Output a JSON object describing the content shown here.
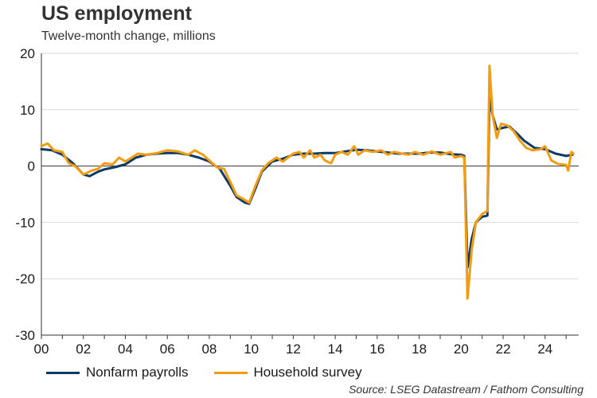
{
  "header": {
    "title": "US employment",
    "subtitle": "Twelve-month change, millions"
  },
  "legend": {
    "items": [
      {
        "label": "Nonfarm payrolls",
        "color": "#0d3b66"
      },
      {
        "label": "Household survey",
        "color": "#f39c12"
      }
    ]
  },
  "source": "Source: LSEG Datastream / Fathom Consulting",
  "chart_data": {
    "type": "line",
    "title": "US employment",
    "subtitle": "Twelve-month change, millions",
    "xlabel": "",
    "ylabel": "",
    "xlim": [
      2000,
      2025.6
    ],
    "ylim": [
      -30,
      20
    ],
    "x_ticks": [
      2000,
      2002,
      2004,
      2006,
      2008,
      2010,
      2012,
      2014,
      2016,
      2018,
      2020,
      2022,
      2024
    ],
    "x_tick_labels": [
      "00",
      "02",
      "04",
      "06",
      "08",
      "10",
      "12",
      "14",
      "16",
      "18",
      "20",
      "22",
      "24"
    ],
    "y_ticks": [
      -30,
      -20,
      -10,
      0,
      10,
      20
    ],
    "y_tick_labels": [
      "-30",
      "-20",
      "-10",
      "0",
      "10",
      "20"
    ],
    "grid": "horizontal",
    "legend_position": "bottom",
    "series": [
      {
        "name": "Nonfarm payrolls",
        "color": "#0d3b66",
        "points": [
          [
            2000.0,
            3.0
          ],
          [
            2000.5,
            2.8
          ],
          [
            2001.0,
            2.0
          ],
          [
            2001.5,
            0.5
          ],
          [
            2002.0,
            -1.5
          ],
          [
            2002.3,
            -1.8
          ],
          [
            2002.7,
            -1.0
          ],
          [
            2003.0,
            -0.6
          ],
          [
            2003.5,
            -0.2
          ],
          [
            2004.0,
            0.3
          ],
          [
            2004.5,
            1.5
          ],
          [
            2005.0,
            2.0
          ],
          [
            2005.5,
            2.2
          ],
          [
            2006.0,
            2.3
          ],
          [
            2006.5,
            2.3
          ],
          [
            2007.0,
            2.0
          ],
          [
            2007.5,
            1.5
          ],
          [
            2008.0,
            0.8
          ],
          [
            2008.5,
            -0.5
          ],
          [
            2009.0,
            -3.5
          ],
          [
            2009.3,
            -5.5
          ],
          [
            2009.7,
            -6.5
          ],
          [
            2009.9,
            -6.7
          ],
          [
            2010.2,
            -4.0
          ],
          [
            2010.5,
            -1.0
          ],
          [
            2011.0,
            0.8
          ],
          [
            2011.5,
            1.3
          ],
          [
            2012.0,
            2.0
          ],
          [
            2012.5,
            2.2
          ],
          [
            2013.0,
            2.2
          ],
          [
            2013.5,
            2.3
          ],
          [
            2014.0,
            2.3
          ],
          [
            2014.5,
            2.6
          ],
          [
            2015.0,
            2.9
          ],
          [
            2015.5,
            2.8
          ],
          [
            2016.0,
            2.6
          ],
          [
            2016.5,
            2.4
          ],
          [
            2017.0,
            2.2
          ],
          [
            2017.5,
            2.2
          ],
          [
            2018.0,
            2.2
          ],
          [
            2018.5,
            2.4
          ],
          [
            2019.0,
            2.4
          ],
          [
            2019.5,
            2.1
          ],
          [
            2020.0,
            2.0
          ],
          [
            2020.15,
            1.8
          ],
          [
            2020.3,
            -18.0
          ],
          [
            2020.5,
            -13.0
          ],
          [
            2020.7,
            -10.0
          ],
          [
            2021.0,
            -9.0
          ],
          [
            2021.25,
            -8.8
          ],
          [
            2021.35,
            12.0
          ],
          [
            2021.5,
            9.0
          ],
          [
            2021.7,
            6.5
          ],
          [
            2022.0,
            6.8
          ],
          [
            2022.3,
            7.0
          ],
          [
            2022.6,
            6.0
          ],
          [
            2023.0,
            4.5
          ],
          [
            2023.5,
            3.2
          ],
          [
            2024.0,
            3.0
          ],
          [
            2024.5,
            2.2
          ],
          [
            2025.0,
            1.8
          ],
          [
            2025.3,
            2.0
          ]
        ]
      },
      {
        "name": "Household survey",
        "color": "#f39c12",
        "points": [
          [
            2000.0,
            3.5
          ],
          [
            2000.3,
            4.0
          ],
          [
            2000.6,
            2.8
          ],
          [
            2001.0,
            2.5
          ],
          [
            2001.3,
            0.5
          ],
          [
            2001.6,
            0.0
          ],
          [
            2002.0,
            -1.5
          ],
          [
            2002.4,
            -0.8
          ],
          [
            2002.7,
            -0.5
          ],
          [
            2003.0,
            0.5
          ],
          [
            2003.4,
            0.3
          ],
          [
            2003.7,
            1.5
          ],
          [
            2004.0,
            0.8
          ],
          [
            2004.3,
            1.5
          ],
          [
            2004.6,
            2.2
          ],
          [
            2005.0,
            2.0
          ],
          [
            2005.5,
            2.3
          ],
          [
            2006.0,
            2.8
          ],
          [
            2006.5,
            2.6
          ],
          [
            2007.0,
            2.0
          ],
          [
            2007.3,
            2.8
          ],
          [
            2007.7,
            2.0
          ],
          [
            2008.0,
            1.0
          ],
          [
            2008.4,
            -0.3
          ],
          [
            2008.7,
            -0.5
          ],
          [
            2009.0,
            -2.8
          ],
          [
            2009.3,
            -5.2
          ],
          [
            2009.6,
            -5.8
          ],
          [
            2009.9,
            -6.5
          ],
          [
            2010.2,
            -3.5
          ],
          [
            2010.5,
            -0.8
          ],
          [
            2010.8,
            0.5
          ],
          [
            2011.2,
            1.5
          ],
          [
            2011.5,
            0.8
          ],
          [
            2012.0,
            2.2
          ],
          [
            2012.3,
            2.5
          ],
          [
            2012.5,
            1.5
          ],
          [
            2012.8,
            2.8
          ],
          [
            2013.0,
            1.5
          ],
          [
            2013.3,
            2.0
          ],
          [
            2013.5,
            1.0
          ],
          [
            2013.8,
            0.5
          ],
          [
            2014.0,
            2.0
          ],
          [
            2014.3,
            2.5
          ],
          [
            2014.6,
            2.0
          ],
          [
            2014.9,
            3.5
          ],
          [
            2015.1,
            2.0
          ],
          [
            2015.4,
            2.8
          ],
          [
            2015.8,
            2.5
          ],
          [
            2016.2,
            2.8
          ],
          [
            2016.5,
            2.0
          ],
          [
            2016.8,
            2.5
          ],
          [
            2017.2,
            2.2
          ],
          [
            2017.5,
            2.0
          ],
          [
            2017.8,
            2.5
          ],
          [
            2018.2,
            2.0
          ],
          [
            2018.6,
            2.6
          ],
          [
            2019.0,
            2.0
          ],
          [
            2019.5,
            2.5
          ],
          [
            2019.7,
            1.5
          ],
          [
            2020.0,
            1.8
          ],
          [
            2020.15,
            1.5
          ],
          [
            2020.3,
            -23.5
          ],
          [
            2020.5,
            -15.0
          ],
          [
            2020.7,
            -10.0
          ],
          [
            2021.0,
            -8.5
          ],
          [
            2021.25,
            -8.0
          ],
          [
            2021.35,
            17.8
          ],
          [
            2021.5,
            9.0
          ],
          [
            2021.7,
            5.0
          ],
          [
            2021.9,
            7.5
          ],
          [
            2022.2,
            7.2
          ],
          [
            2022.5,
            6.2
          ],
          [
            2022.8,
            4.5
          ],
          [
            2023.1,
            3.2
          ],
          [
            2023.4,
            2.8
          ],
          [
            2023.8,
            3.0
          ],
          [
            2024.0,
            3.5
          ],
          [
            2024.3,
            1.0
          ],
          [
            2024.6,
            0.4
          ],
          [
            2025.0,
            0.2
          ],
          [
            2025.1,
            -0.8
          ],
          [
            2025.25,
            2.5
          ],
          [
            2025.35,
            2.2
          ]
        ]
      }
    ]
  }
}
